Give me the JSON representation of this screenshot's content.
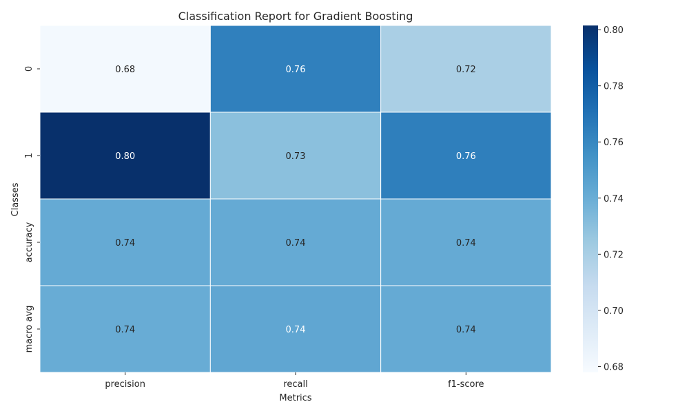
{
  "chart_data": {
    "type": "heatmap",
    "title": "Classification Report for Gradient Boosting",
    "xlabel": "Metrics",
    "ylabel": "Classes",
    "x_categories": [
      "precision",
      "recall",
      "f1-score"
    ],
    "y_categories": [
      "0",
      "1",
      "accuracy",
      "macro avg"
    ],
    "values": [
      [
        0.6802,
        0.7637,
        0.7196
      ],
      [
        0.8015,
        0.73,
        0.7641
      ],
      [
        0.742,
        0.742,
        0.742
      ],
      [
        0.741,
        0.744,
        0.742
      ]
    ],
    "value_labels": [
      [
        "0.68",
        "0.76",
        "0.72"
      ],
      [
        "0.80",
        "0.73",
        "0.76"
      ],
      [
        "0.74",
        "0.74",
        "0.74"
      ],
      [
        "0.74",
        "0.74",
        "0.74"
      ]
    ],
    "colormap": "Blues",
    "colorbar": {
      "range": [
        0.6779,
        0.8015
      ],
      "ticks": [
        0.68,
        0.7,
        0.72,
        0.74,
        0.76,
        0.78,
        0.8
      ],
      "tick_labels": [
        "0.68",
        "0.70",
        "0.72",
        "0.74",
        "0.76",
        "0.78",
        "0.80"
      ]
    },
    "cell_border_color": "#ffffff",
    "grid": false
  }
}
